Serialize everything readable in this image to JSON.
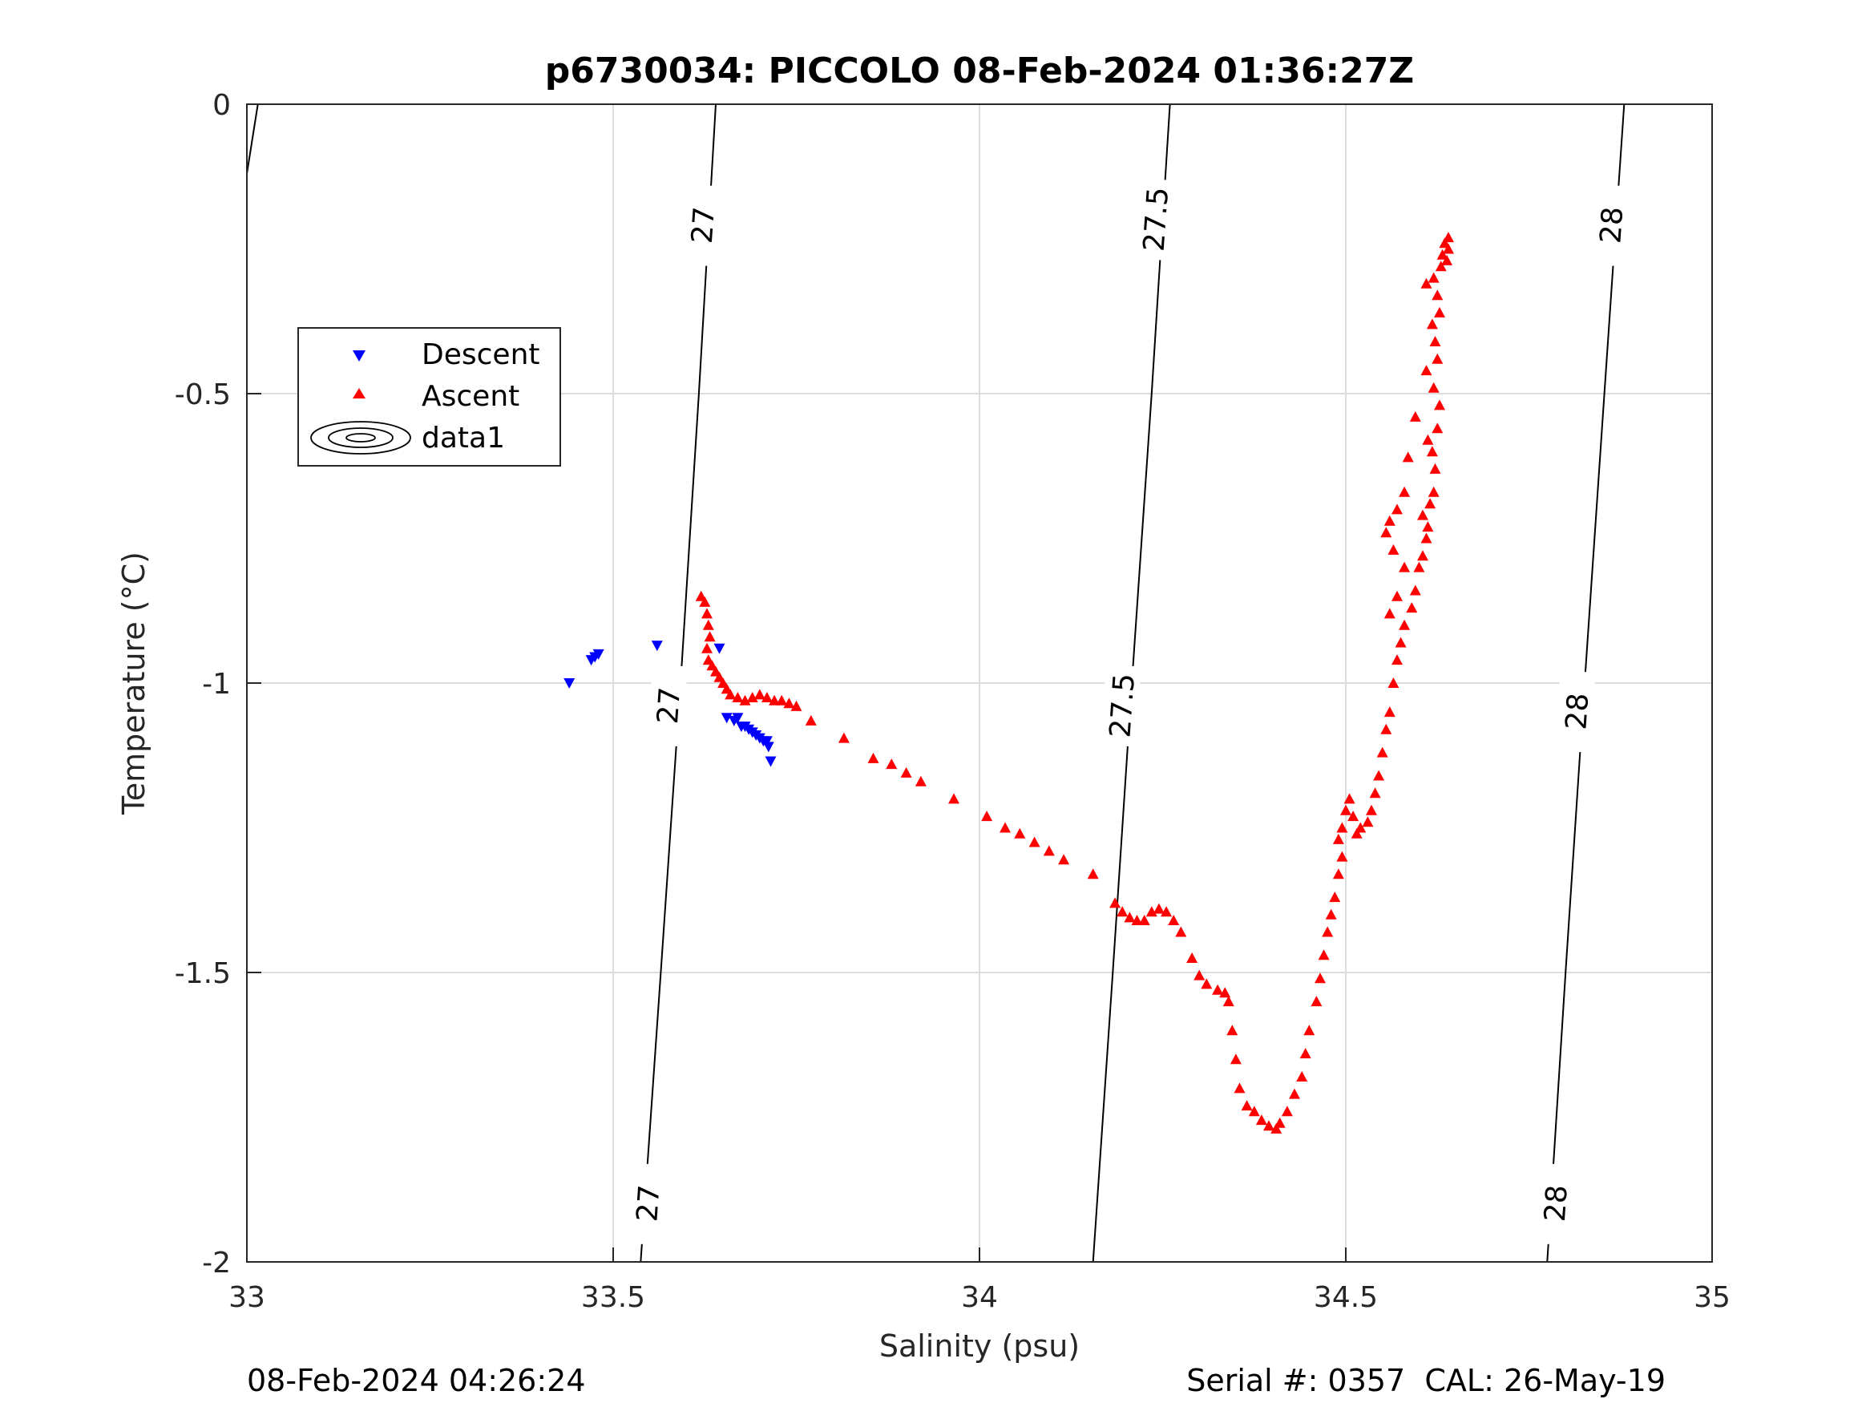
{
  "chart_data": {
    "type": "scatter",
    "title": "p6730034: PICCOLO 08-Feb-2024 01:36:27Z",
    "xlabel": "Salinity (psu)",
    "ylabel": "Temperature (°C)",
    "xlim": [
      33,
      35
    ],
    "ylim": [
      -2,
      0
    ],
    "x_ticks": [
      "33",
      "33.5",
      "34",
      "34.5",
      "35"
    ],
    "y_ticks": [
      "0",
      "-0.5",
      "-1",
      "-1.5",
      "-2"
    ],
    "grid": true,
    "legend_position": "upper-left",
    "legend": [
      "Descent",
      "Ascent",
      "data1"
    ],
    "series": [
      {
        "name": "Descent",
        "marker": "triangle-down",
        "color": "#0000ff",
        "points": [
          [
            33.44,
            -1.0
          ],
          [
            33.47,
            -0.96
          ],
          [
            33.475,
            -0.955
          ],
          [
            33.48,
            -0.95
          ],
          [
            33.56,
            -0.935
          ],
          [
            33.645,
            -0.94
          ],
          [
            33.655,
            -1.06
          ],
          [
            33.665,
            -1.065
          ],
          [
            33.67,
            -1.06
          ],
          [
            33.675,
            -1.075
          ],
          [
            33.68,
            -1.075
          ],
          [
            33.685,
            -1.08
          ],
          [
            33.69,
            -1.085
          ],
          [
            33.695,
            -1.09
          ],
          [
            33.7,
            -1.095
          ],
          [
            33.705,
            -1.1
          ],
          [
            33.71,
            -1.1
          ],
          [
            33.712,
            -1.11
          ],
          [
            33.715,
            -1.135
          ]
        ]
      },
      {
        "name": "Ascent",
        "marker": "triangle-up",
        "color": "#ff0000",
        "points": [
          [
            33.62,
            -0.85
          ],
          [
            33.625,
            -0.86
          ],
          [
            33.628,
            -0.88
          ],
          [
            33.63,
            -0.9
          ],
          [
            33.632,
            -0.92
          ],
          [
            33.628,
            -0.94
          ],
          [
            33.63,
            -0.96
          ],
          [
            33.635,
            -0.97
          ],
          [
            33.64,
            -0.98
          ],
          [
            33.645,
            -0.99
          ],
          [
            33.65,
            -1.0
          ],
          [
            33.655,
            -1.01
          ],
          [
            33.66,
            -1.02
          ],
          [
            33.67,
            -1.025
          ],
          [
            33.68,
            -1.03
          ],
          [
            33.69,
            -1.025
          ],
          [
            33.7,
            -1.02
          ],
          [
            33.71,
            -1.025
          ],
          [
            33.72,
            -1.03
          ],
          [
            33.73,
            -1.03
          ],
          [
            33.74,
            -1.035
          ],
          [
            33.75,
            -1.04
          ],
          [
            33.77,
            -1.065
          ],
          [
            33.815,
            -1.095
          ],
          [
            33.855,
            -1.13
          ],
          [
            33.88,
            -1.14
          ],
          [
            33.9,
            -1.155
          ],
          [
            33.92,
            -1.17
          ],
          [
            33.965,
            -1.2
          ],
          [
            34.01,
            -1.23
          ],
          [
            34.035,
            -1.25
          ],
          [
            34.055,
            -1.26
          ],
          [
            34.075,
            -1.275
          ],
          [
            34.095,
            -1.29
          ],
          [
            34.115,
            -1.305
          ],
          [
            34.155,
            -1.33
          ],
          [
            34.185,
            -1.38
          ],
          [
            34.195,
            -1.395
          ],
          [
            34.205,
            -1.405
          ],
          [
            34.215,
            -1.41
          ],
          [
            34.225,
            -1.41
          ],
          [
            34.235,
            -1.395
          ],
          [
            34.245,
            -1.39
          ],
          [
            34.255,
            -1.395
          ],
          [
            34.265,
            -1.41
          ],
          [
            34.275,
            -1.43
          ],
          [
            34.29,
            -1.475
          ],
          [
            34.3,
            -1.505
          ],
          [
            34.31,
            -1.52
          ],
          [
            34.325,
            -1.53
          ],
          [
            34.335,
            -1.535
          ],
          [
            34.34,
            -1.55
          ],
          [
            34.345,
            -1.6
          ],
          [
            34.35,
            -1.65
          ],
          [
            34.355,
            -1.7
          ],
          [
            34.365,
            -1.73
          ],
          [
            34.375,
            -1.74
          ],
          [
            34.385,
            -1.755
          ],
          [
            34.395,
            -1.765
          ],
          [
            34.405,
            -1.77
          ],
          [
            34.41,
            -1.76
          ],
          [
            34.42,
            -1.74
          ],
          [
            34.43,
            -1.71
          ],
          [
            34.44,
            -1.68
          ],
          [
            34.445,
            -1.64
          ],
          [
            34.45,
            -1.6
          ],
          [
            34.46,
            -1.55
          ],
          [
            34.465,
            -1.51
          ],
          [
            34.47,
            -1.47
          ],
          [
            34.475,
            -1.43
          ],
          [
            34.48,
            -1.4
          ],
          [
            34.485,
            -1.37
          ],
          [
            34.49,
            -1.33
          ],
          [
            34.495,
            -1.3
          ],
          [
            34.49,
            -1.27
          ],
          [
            34.495,
            -1.25
          ],
          [
            34.5,
            -1.22
          ],
          [
            34.505,
            -1.2
          ],
          [
            34.51,
            -1.23
          ],
          [
            34.515,
            -1.26
          ],
          [
            34.52,
            -1.25
          ],
          [
            34.53,
            -1.24
          ],
          [
            34.535,
            -1.22
          ],
          [
            34.54,
            -1.19
          ],
          [
            34.545,
            -1.16
          ],
          [
            34.55,
            -1.12
          ],
          [
            34.555,
            -1.08
          ],
          [
            34.56,
            -1.05
          ],
          [
            34.565,
            -1.0
          ],
          [
            34.57,
            -0.96
          ],
          [
            34.575,
            -0.93
          ],
          [
            34.58,
            -0.9
          ],
          [
            34.59,
            -0.87
          ],
          [
            34.595,
            -0.84
          ],
          [
            34.6,
            -0.8
          ],
          [
            34.605,
            -0.78
          ],
          [
            34.61,
            -0.75
          ],
          [
            34.612,
            -0.73
          ],
          [
            34.605,
            -0.71
          ],
          [
            34.615,
            -0.69
          ],
          [
            34.62,
            -0.67
          ],
          [
            34.622,
            -0.63
          ],
          [
            34.618,
            -0.6
          ],
          [
            34.612,
            -0.58
          ],
          [
            34.625,
            -0.56
          ],
          [
            34.628,
            -0.52
          ],
          [
            34.62,
            -0.49
          ],
          [
            34.61,
            -0.46
          ],
          [
            34.625,
            -0.44
          ],
          [
            34.622,
            -0.41
          ],
          [
            34.618,
            -0.38
          ],
          [
            34.628,
            -0.36
          ],
          [
            34.625,
            -0.33
          ],
          [
            34.62,
            -0.3
          ],
          [
            34.63,
            -0.28
          ],
          [
            34.632,
            -0.26
          ],
          [
            34.635,
            -0.24
          ],
          [
            34.64,
            -0.23
          ],
          [
            34.64,
            -0.25
          ],
          [
            34.638,
            -0.27
          ],
          [
            34.61,
            -0.31
          ],
          [
            34.595,
            -0.54
          ],
          [
            34.585,
            -0.61
          ],
          [
            34.58,
            -0.67
          ],
          [
            34.57,
            -0.7
          ],
          [
            34.56,
            -0.72
          ],
          [
            34.555,
            -0.74
          ],
          [
            34.565,
            -0.77
          ],
          [
            34.58,
            -0.8
          ],
          [
            34.57,
            -0.85
          ],
          [
            34.56,
            -0.88
          ]
        ]
      }
    ],
    "isopycnals": [
      {
        "label": "27",
        "points": [
          [
            33.5375,
            -2.0
          ],
          [
            33.565,
            -1.5
          ],
          [
            33.592,
            -1.0
          ],
          [
            33.617,
            -0.5
          ],
          [
            33.64,
            0.0
          ]
        ]
      },
      {
        "label": "27.5",
        "points": [
          [
            34.155,
            -2.0
          ],
          [
            34.182,
            -1.5
          ],
          [
            34.208,
            -1.0
          ],
          [
            34.235,
            -0.5
          ],
          [
            34.26,
            0.0
          ]
        ]
      },
      {
        "label": "28",
        "points": [
          [
            34.775,
            -2.0
          ],
          [
            34.8,
            -1.5
          ],
          [
            34.826,
            -1.0
          ],
          [
            34.853,
            -0.5
          ],
          [
            34.88,
            0.0
          ]
        ]
      },
      {
        "label": "",
        "points": [
          [
            32.99,
            -0.17
          ],
          [
            33.0,
            -0.12
          ],
          [
            33.015,
            0.0
          ]
        ]
      }
    ],
    "contour_labels": [
      {
        "text": "27",
        "x": 33.623,
        "y": -0.21
      },
      {
        "text": "27",
        "x": 33.576,
        "y": -1.04
      },
      {
        "text": "27",
        "x": 33.548,
        "y": -1.9
      },
      {
        "text": "27.5",
        "x": 34.241,
        "y": -0.2
      },
      {
        "text": "27.5",
        "x": 34.195,
        "y": -1.04
      },
      {
        "text": "28",
        "x": 34.863,
        "y": -0.21
      },
      {
        "text": "28",
        "x": 34.816,
        "y": -1.05
      },
      {
        "text": "28",
        "x": 34.787,
        "y": -1.9
      }
    ]
  },
  "footer": {
    "timestamp": "08-Feb-2024 04:26:24",
    "serial_cal": "Serial #: 0357  CAL: 26-May-19"
  }
}
